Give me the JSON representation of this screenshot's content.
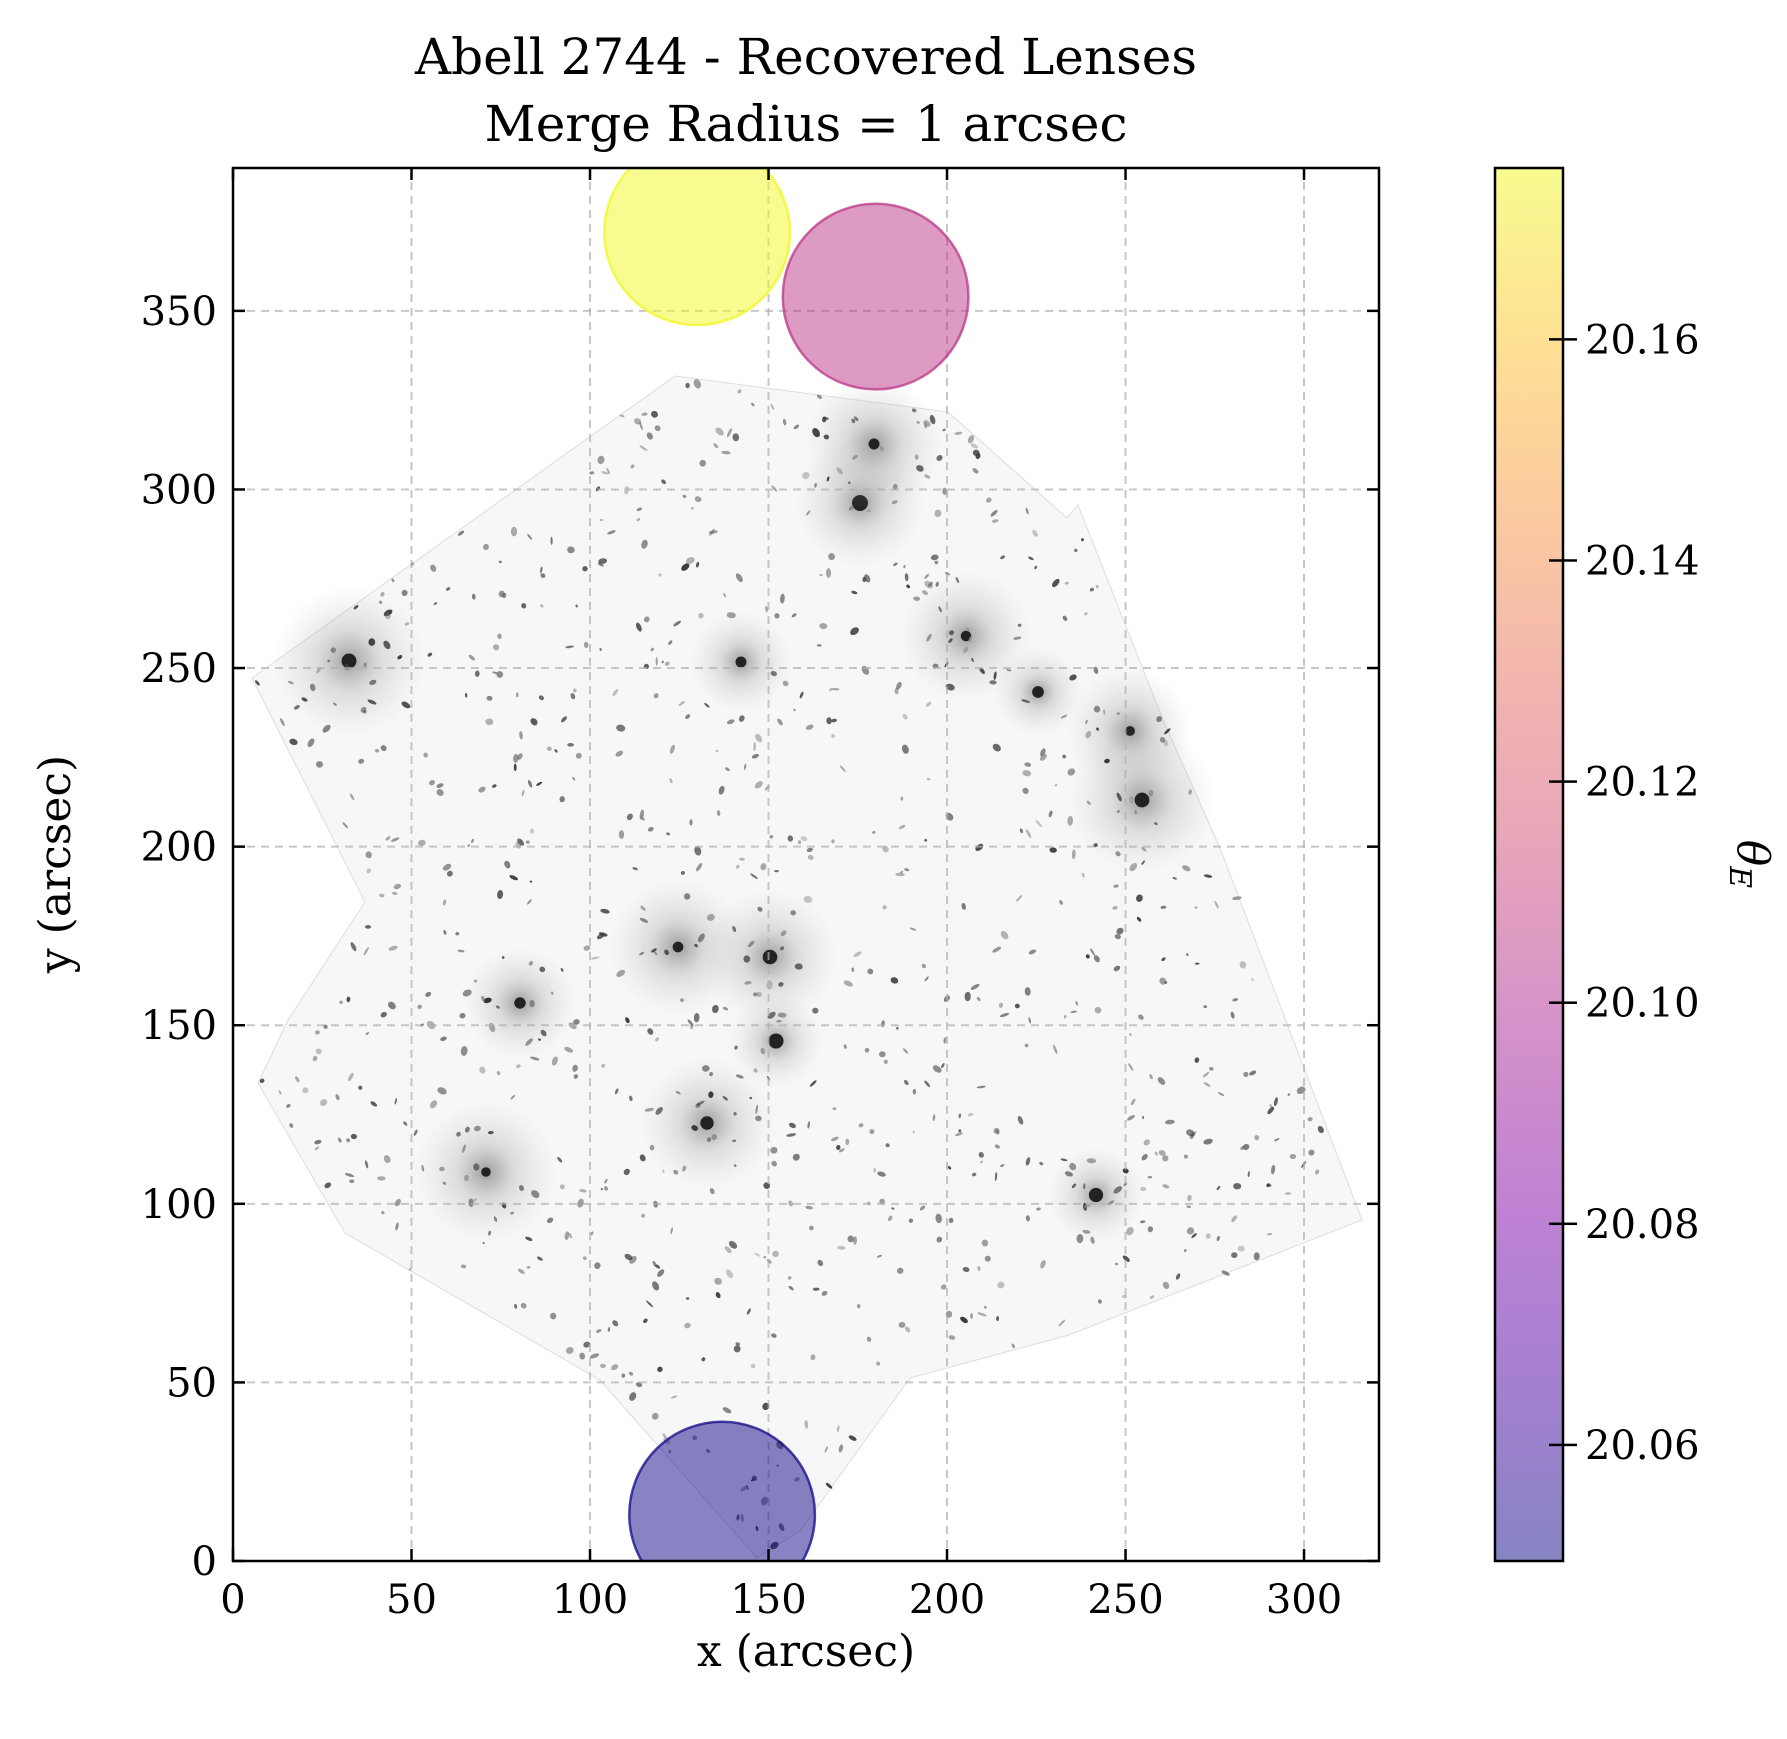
{
  "chart_data": {
    "type": "scatter",
    "title": "Abell 2744 - Recovered Lenses",
    "subtitle": "Merge Radius = 1 arcsec",
    "xlabel": "x (arcsec)",
    "ylabel": "y (arcsec)",
    "xlim": [
      0,
      321
    ],
    "ylim": [
      0,
      390
    ],
    "x_ticks": [
      0,
      50,
      100,
      150,
      200,
      250,
      300
    ],
    "y_ticks": [
      0,
      50,
      100,
      150,
      200,
      250,
      300,
      350
    ],
    "grid": true,
    "background_image": "Abell 2744 cluster field (HST mosaic, greyscale, rotated footprint)",
    "lenses": [
      {
        "x": 130,
        "y": 372,
        "radius": 26,
        "theta_E": 20.175
      },
      {
        "x": 180,
        "y": 354,
        "radius": 26,
        "theta_E": 20.105
      },
      {
        "x": 137,
        "y": 13,
        "radius": 26,
        "theta_E": 20.051
      }
    ],
    "colorbar": {
      "label": "θ_E",
      "range": [
        20.0495,
        20.1755
      ],
      "ticks": [
        20.06,
        20.08,
        20.1,
        20.12,
        20.14,
        20.16
      ],
      "tick_labels": [
        "20.06",
        "20.08",
        "20.10",
        "20.12",
        "20.14",
        "20.16"
      ],
      "colormap": "plasma",
      "alpha": 0.5
    }
  }
}
